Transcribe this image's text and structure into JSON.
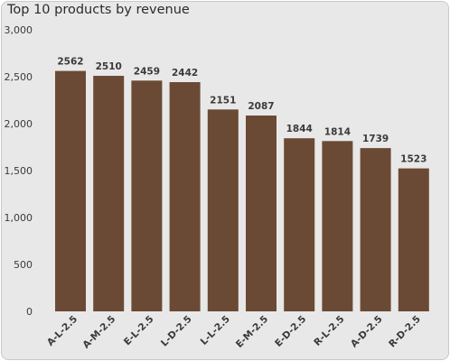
{
  "chart_data": {
    "type": "bar",
    "title": "Top 10 products by revenue",
    "categories": [
      "A-L-2.5",
      "A-M-2.5",
      "E-L-2.5",
      "L-D-2.5",
      "L-L-2.5",
      "E-M-2.5",
      "E-D-2.5",
      "R-L-2.5",
      "A-D-2.5",
      "R-D-2.5"
    ],
    "values": [
      2562,
      2510,
      2459,
      2442,
      2151,
      2087,
      1844,
      1814,
      1739,
      1523
    ],
    "yticks": [
      "0",
      "500",
      "1,000",
      "1,500",
      "2,000",
      "2,500",
      "3,000"
    ],
    "ylim": [
      0,
      3000
    ],
    "xlabel": "",
    "ylabel": "",
    "grid": false,
    "legend": "none",
    "bar_color": "#6b4a35",
    "background_color": "#e8e8e8"
  }
}
